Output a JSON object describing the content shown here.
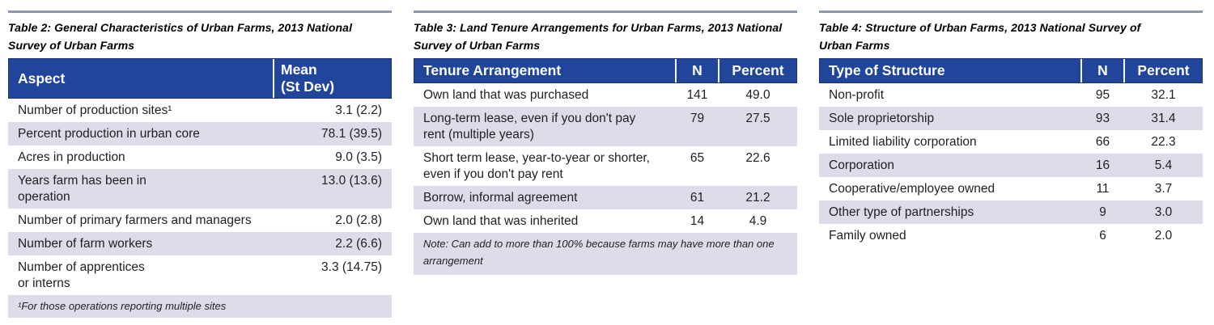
{
  "style": {
    "header_bg": "#21459b",
    "header_text": "#ffffff",
    "row_alt_bg": "#dedce9",
    "row_bg": "#ffffff",
    "rule_color": "#8e98a8",
    "body_text": "#221e1f"
  },
  "tables": [
    {
      "id": "table-2",
      "title": "Table 2: General Characteristics of Urban Farms, 2013 National\nSurvey of Urban Farms",
      "header": {
        "col1": "Aspect",
        "col2": "Mean\n(St Dev)"
      },
      "rows": [
        {
          "label": "Number of production sites¹",
          "value": "3.1 (2.2)"
        },
        {
          "label": "Percent production in urban core",
          "value": "78.1 (39.5)"
        },
        {
          "label": "Acres in production",
          "value": "9.0 (3.5)"
        },
        {
          "label": "Years farm has been in\noperation",
          "value": "13.0 (13.6)"
        },
        {
          "label": "Number of primary farmers and managers",
          "value": "2.0 (2.8)"
        },
        {
          "label": "Number of farm workers",
          "value": "2.2 (6.6)"
        },
        {
          "label": "Number of apprentices\nor interns",
          "value": "3.3 (14.75)"
        }
      ],
      "footnote": "¹For those operations reporting multiple sites"
    },
    {
      "id": "table-3",
      "title": "Table 3: Land Tenure Arrangements for Urban Farms, 2013 National\nSurvey of Urban Farms",
      "header": {
        "col1": "Tenure Arrangement",
        "col2": "N",
        "col3": "Percent"
      },
      "rows": [
        {
          "label": "Own land that was purchased",
          "n": "141",
          "percent": "49.0"
        },
        {
          "label": "Long-term lease, even if you don't pay\nrent (multiple years)",
          "n": "79",
          "percent": "27.5"
        },
        {
          "label": "Short term lease, year-to-year or shorter,\neven if you don't pay rent",
          "n": "65",
          "percent": "22.6"
        },
        {
          "label": "Borrow, informal agreement",
          "n": "61",
          "percent": "21.2"
        },
        {
          "label": "Own land that was inherited",
          "n": "14",
          "percent": "4.9"
        }
      ],
      "note": "Note: Can add to more than 100% because farms may have more than one\narrangement"
    },
    {
      "id": "table-4",
      "title": "Table 4: Structure of Urban Farms, 2013 National Survey of\nUrban Farms",
      "header": {
        "col1": "Type of Structure",
        "col2": "N",
        "col3": "Percent"
      },
      "rows": [
        {
          "label": "Non-profit",
          "n": "95",
          "percent": "32.1"
        },
        {
          "label": "Sole proprietorship",
          "n": "93",
          "percent": "31.4"
        },
        {
          "label": "Limited liability corporation",
          "n": "66",
          "percent": "22.3"
        },
        {
          "label": "Corporation",
          "n": "16",
          "percent": "5.4"
        },
        {
          "label": "Cooperative/employee owned",
          "n": "11",
          "percent": "3.7"
        },
        {
          "label": "Other type of partnerships",
          "n": "9",
          "percent": "3.0"
        },
        {
          "label": "Family owned",
          "n": "6",
          "percent": "2.0"
        }
      ]
    }
  ]
}
